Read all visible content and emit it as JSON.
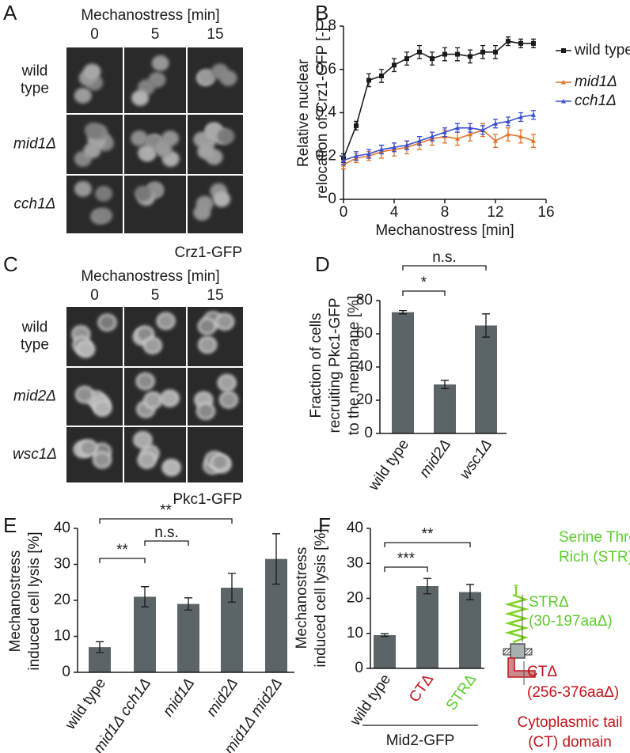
{
  "panel_labels": [
    "A",
    "B",
    "C",
    "D",
    "E",
    "F"
  ],
  "micrographs": [
    {
      "header": "Mechanostress [min]",
      "times": [
        "0",
        "5",
        "15"
      ],
      "rows": [
        [
          "wild",
          "type"
        ],
        [
          "mid1Δ"
        ],
        [
          "cch1Δ"
        ]
      ],
      "caption": "Crz1-GFP"
    },
    {
      "header": "Mechanostress [min]",
      "times": [
        "0",
        "5",
        "15"
      ],
      "rows": [
        [
          "wild",
          "type"
        ],
        [
          "mid2Δ"
        ],
        [
          "wsc1Δ"
        ]
      ],
      "caption": "Pkc1-GFP"
    }
  ],
  "chart_data": [
    {
      "type": "line",
      "xlabel": "Mechanostress [min]",
      "ylabel": [
        "Relative nuclear",
        "relocation of Crz1-GFP [-]"
      ],
      "x": [
        0,
        1,
        2,
        3,
        4,
        5,
        6,
        7,
        8,
        9,
        10,
        11,
        12,
        13,
        14,
        15
      ],
      "xlim": [
        0,
        16
      ],
      "xticks": [
        0,
        4,
        8,
        12,
        16
      ],
      "ylim": [
        0,
        0.8
      ],
      "yticks": [
        0,
        0.2,
        0.4,
        0.6,
        0.8
      ],
      "legend": "right",
      "series": [
        {
          "name": "wild type",
          "color": "#1a1a1a",
          "values": [
            0.19,
            0.34,
            0.55,
            0.57,
            0.62,
            0.65,
            0.68,
            0.65,
            0.67,
            0.67,
            0.66,
            0.68,
            0.68,
            0.73,
            0.72,
            0.72
          ],
          "errors": [
            0.02,
            0.02,
            0.03,
            0.03,
            0.03,
            0.03,
            0.03,
            0.03,
            0.03,
            0.03,
            0.03,
            0.03,
            0.03,
            0.02,
            0.02,
            0.02
          ]
        },
        {
          "name": "mid1Δ",
          "color": "#e0732a",
          "values": [
            0.16,
            0.19,
            0.2,
            0.22,
            0.23,
            0.24,
            0.26,
            0.28,
            0.29,
            0.28,
            0.3,
            0.32,
            0.27,
            0.3,
            0.29,
            0.27
          ],
          "errors": [
            0.02,
            0.02,
            0.02,
            0.03,
            0.03,
            0.03,
            0.03,
            0.03,
            0.03,
            0.03,
            0.03,
            0.03,
            0.03,
            0.03,
            0.03,
            0.03
          ]
        },
        {
          "name": "cch1Δ",
          "color": "#3a4fd0",
          "values": [
            0.18,
            0.2,
            0.21,
            0.23,
            0.24,
            0.25,
            0.27,
            0.29,
            0.31,
            0.33,
            0.33,
            0.32,
            0.35,
            0.36,
            0.38,
            0.39
          ],
          "errors": [
            0.02,
            0.02,
            0.02,
            0.02,
            0.02,
            0.02,
            0.02,
            0.02,
            0.02,
            0.02,
            0.02,
            0.02,
            0.02,
            0.02,
            0.02,
            0.02
          ]
        }
      ]
    },
    {
      "type": "bar",
      "ylabel": [
        "Fraction of cells",
        "recruiting Pkc1-GFP",
        "to the membrane [%]"
      ],
      "categories": [
        "wild type",
        "mid2Δ",
        "wsc1Δ"
      ],
      "values": [
        73,
        29.5,
        65
      ],
      "errors": [
        1,
        2.5,
        7
      ],
      "color": "#5b6466",
      "ylim": [
        0,
        80
      ],
      "yticks": [
        0,
        20,
        40,
        60,
        80
      ],
      "annotations": [
        "n.s.",
        "*"
      ]
    },
    {
      "type": "bar",
      "ylabel": [
        "Mechanostress",
        "induced cell lysis [%]"
      ],
      "categories": [
        "wild type",
        "mid1Δ cch1Δ",
        "mid1Δ",
        "mid2Δ",
        "mid1Δ mid2Δ"
      ],
      "values": [
        7,
        21,
        19,
        23.5,
        31.5
      ],
      "errors": [
        1.5,
        2.8,
        1.7,
        4,
        7
      ],
      "color": "#5b6466",
      "ylim": [
        0,
        40
      ],
      "yticks": [
        0,
        10,
        20,
        30,
        40
      ],
      "annotations": [
        "**",
        "n.s.",
        "**"
      ]
    },
    {
      "type": "bar",
      "ylabel": [
        "Mechanostress",
        "induced cell lysis [%]"
      ],
      "categories": [
        "wild type",
        "CTΔ",
        "STRΔ"
      ],
      "label_colors": [
        "#1a1a1a",
        "#c0141c",
        "#5ccc2c"
      ],
      "values": [
        9.5,
        23.5,
        21.8
      ],
      "errors": [
        0.4,
        2.2,
        2.2
      ],
      "color": "#5b6466",
      "ylim": [
        0,
        40
      ],
      "yticks": [
        0,
        10,
        20,
        30,
        40
      ],
      "annotations": [
        "**",
        "***"
      ],
      "group_label": "Mid2-GFP"
    }
  ],
  "diagram": {
    "str_title": [
      "Serine Threonine",
      "Rich (STR) domain"
    ],
    "str_deletion": [
      "STRΔ",
      "(30-197aaΔ)"
    ],
    "ct_deletion": [
      "CTΔ",
      "(256-376aaΔ)"
    ],
    "ct_title": [
      "Cytoplasmic tail",
      "(CT) domain"
    ]
  }
}
